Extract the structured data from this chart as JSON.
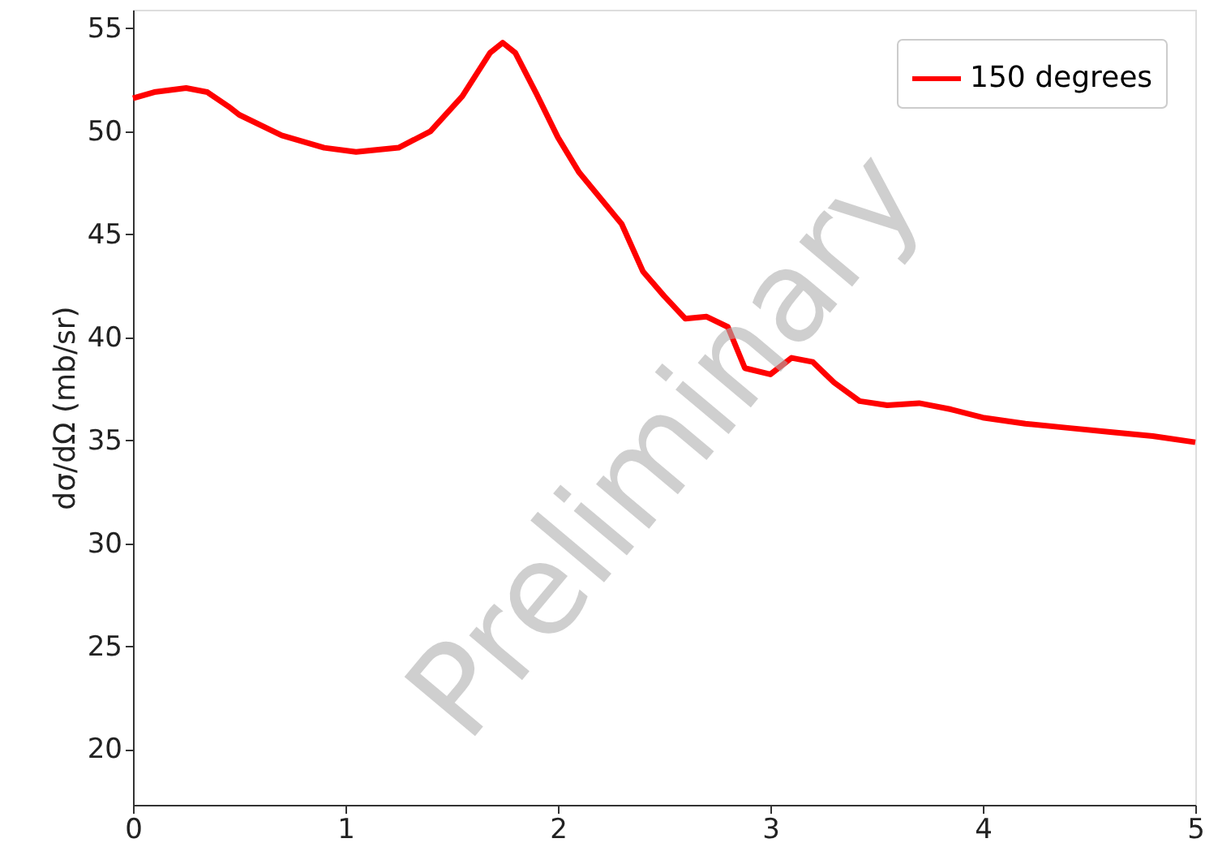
{
  "chart_data": {
    "type": "line",
    "ylabel": "dσ/dΩ (mb/sr)",
    "x": [
      0,
      0.1,
      0.25,
      0.35,
      0.45,
      0.5,
      0.7,
      0.9,
      1.05,
      1.25,
      1.4,
      1.55,
      1.68,
      1.74,
      1.8,
      1.9,
      2.0,
      2.1,
      2.3,
      2.4,
      2.5,
      2.6,
      2.7,
      2.8,
      2.88,
      3.0,
      3.1,
      3.2,
      3.3,
      3.42,
      3.55,
      3.7,
      3.85,
      4.0,
      4.2,
      4.4,
      4.6,
      4.8,
      5.0
    ],
    "series": [
      {
        "name": "150 degrees",
        "color": "#ff0000",
        "values": [
          51.6,
          51.9,
          52.1,
          51.9,
          51.2,
          50.8,
          49.8,
          49.2,
          49.0,
          49.2,
          50.0,
          51.7,
          53.8,
          54.3,
          53.8,
          51.8,
          49.7,
          48.0,
          45.5,
          43.2,
          42.0,
          40.9,
          41.0,
          40.5,
          38.5,
          38.2,
          39.0,
          38.8,
          37.8,
          36.9,
          36.7,
          36.8,
          36.5,
          36.1,
          35.8,
          35.6,
          35.4,
          35.2,
          34.9
        ]
      }
    ],
    "xlim": [
      0,
      5
    ],
    "xticks": [
      0,
      1,
      2,
      3,
      4,
      5
    ],
    "ylim": [
      17.3,
      55.9
    ],
    "yticks": [
      20,
      25,
      30,
      35,
      40,
      45,
      50,
      55
    ],
    "annotations": [
      {
        "text": "Preliminary"
      }
    ],
    "legend": "top right",
    "grid": false,
    "marker": "none",
    "line_style": "solid"
  }
}
